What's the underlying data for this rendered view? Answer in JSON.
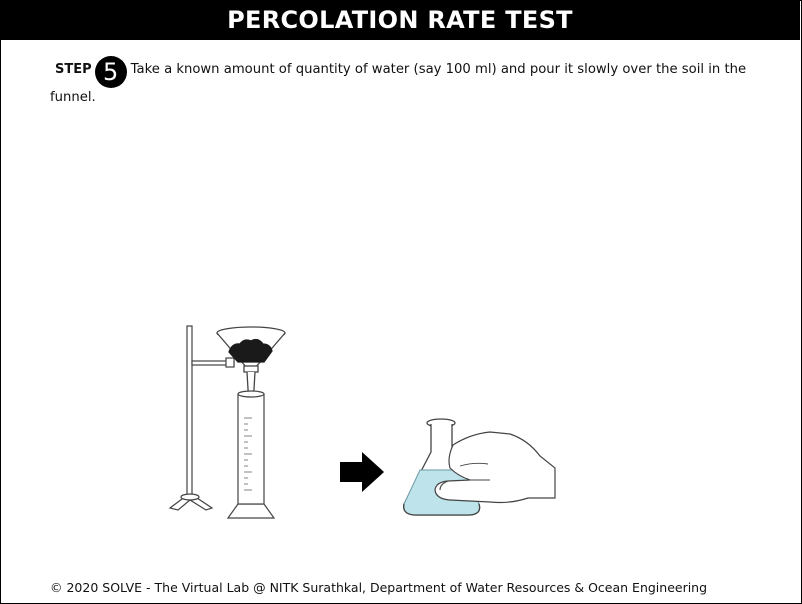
{
  "header": {
    "title": "PERCOLATION RATE TEST"
  },
  "instruction": {
    "step_label": "STEP",
    "step_number": "5",
    "text": "Take a known amount of quantity of water (say 100 ml) and pour it slowly over the soil in the funnel."
  },
  "illustration": {
    "icons": [
      "retort-stand-icon",
      "funnel-with-soil-icon",
      "measuring-cylinder-icon",
      "arrow-right-icon",
      "conical-flask-icon",
      "hand-icon"
    ],
    "colors": {
      "water": "#bfe3ea",
      "outline": "#444444",
      "soil": "#1a1a1a",
      "arrow": "#000000"
    }
  },
  "footer": {
    "copyright": "© 2020 SOLVE - The Virtual Lab @ NITK Surathkal, Department of Water Resources & Ocean Engineering"
  }
}
